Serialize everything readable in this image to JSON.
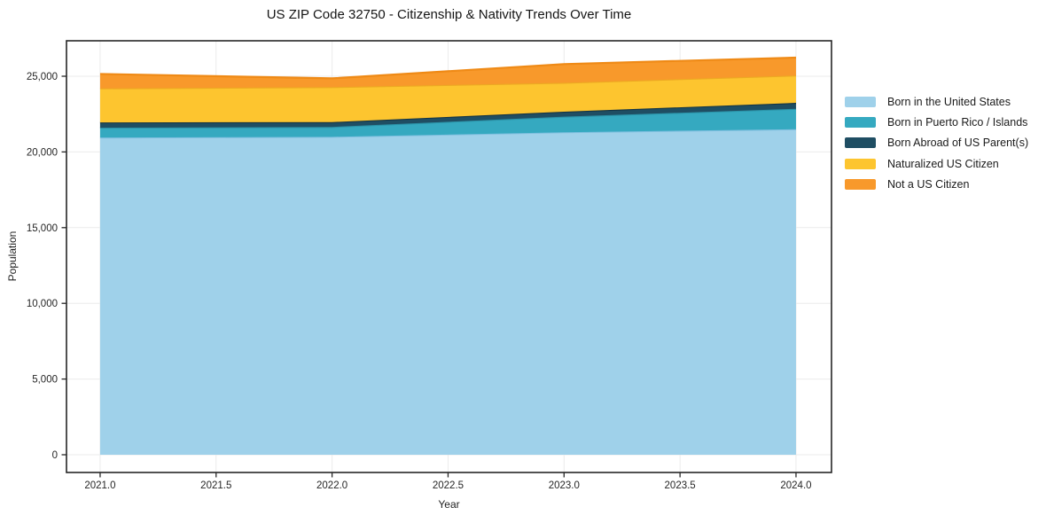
{
  "chart_data": {
    "type": "area",
    "stacked": true,
    "title": "US ZIP Code 32750 - Citizenship & Nativity Trends Over Time",
    "xlabel": "Year",
    "ylabel": "Population",
    "x": [
      2021,
      2022,
      2023,
      2024
    ],
    "series": [
      {
        "name": "Born in the United States",
        "color": "#9FD1EA",
        "edge_color": "#7FBFDF",
        "values": [
          20950,
          21000,
          21300,
          21500
        ]
      },
      {
        "name": "Born in Puerto Rico / Islands",
        "color": "#35A9C0",
        "edge_color": "#2B93A8",
        "values": [
          650,
          650,
          1030,
          1350
        ]
      },
      {
        "name": "Born Abroad of US Parent(s)",
        "color": "#1F4E63",
        "edge_color": "#143445",
        "values": [
          350,
          320,
          330,
          390
        ]
      },
      {
        "name": "Naturalized US Citizen",
        "color": "#FDC52F",
        "edge_color": "#EDA922",
        "values": [
          2250,
          2310,
          1910,
          1810
        ]
      },
      {
        "name": "Not a US Citizen",
        "color": "#F8992B",
        "edge_color": "#EF8A16",
        "values": [
          950,
          580,
          1230,
          1180
        ]
      }
    ],
    "x_ticks": {
      "values": [
        2021.0,
        2021.5,
        2022.0,
        2022.5,
        2023.0,
        2023.5,
        2024.0
      ],
      "labels": [
        "2021.0",
        "2021.5",
        "2022.0",
        "2022.5",
        "2023.0",
        "2023.5",
        "2024.0"
      ]
    },
    "y_ticks": {
      "values": [
        0,
        5000,
        10000,
        15000,
        20000,
        25000
      ],
      "labels": [
        "0",
        "5,000",
        "10,000",
        "15,000",
        "20,000",
        "25,000"
      ]
    },
    "xlim": [
      2020.855,
      2024.153
    ],
    "ylim": [
      -1171,
      27342
    ],
    "grid": true,
    "grid_color": "#EBEBEB",
    "spine_color": "#262626",
    "tick_label_color": "#262626",
    "legend_position": "right-outside"
  }
}
